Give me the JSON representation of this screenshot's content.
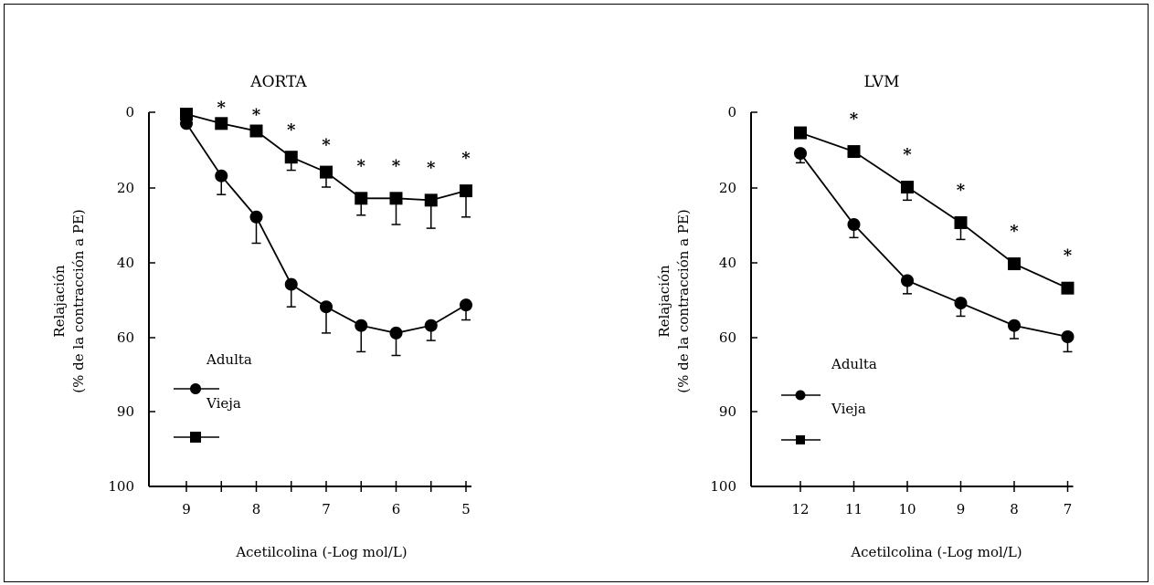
{
  "chart_data": [
    {
      "type": "line",
      "title": "AORTA",
      "xlabel": "Acetilcolina (-Log mol/L)",
      "ylabel_line1": "Relajación",
      "ylabel_line2": "(% de la contracción a PE)",
      "x_tick_labels": [
        "9",
        "8",
        "7",
        "6",
        "5"
      ],
      "x_tick_values": [
        9,
        8,
        7,
        6,
        5
      ],
      "x_range": [
        9,
        5
      ],
      "y_tick_labels": [
        "0",
        "20",
        "40",
        "60",
        "90",
        "100"
      ],
      "y_range": [
        0,
        100
      ],
      "y_inverted": true,
      "legend_labels": [
        "Adulta",
        "Vieja"
      ],
      "series": [
        {
          "name": "Adulta",
          "marker": "circle",
          "x": [
            9,
            8.5,
            8,
            7.5,
            7,
            6.5,
            6,
            5.5,
            5
          ],
          "values": [
            3,
            17,
            28,
            46,
            52,
            57,
            59,
            57,
            51.5
          ],
          "errors": [
            1,
            5,
            7,
            6,
            7,
            7,
            6,
            4,
            4
          ]
        },
        {
          "name": "Vieja",
          "marker": "square",
          "x": [
            9,
            8.5,
            8,
            7.5,
            7,
            6.5,
            6,
            5.5,
            5
          ],
          "values": [
            0.5,
            3,
            5,
            12,
            16,
            23,
            23,
            23.5,
            21
          ],
          "errors": [
            0,
            0,
            0,
            3.5,
            4,
            4.5,
            7,
            7.5,
            7
          ]
        }
      ],
      "significance_x": [
        8.5,
        8,
        7.5,
        7,
        6.5,
        6,
        5.5,
        5
      ],
      "significance_mark": "*"
    },
    {
      "type": "line",
      "title": "LVM",
      "xlabel": "Acetilcolina (-Log mol/L)",
      "ylabel_line1": "Relajación",
      "ylabel_line2": "(% de la contracción a PE)",
      "x_tick_labels": [
        "12",
        "11",
        "10",
        "9",
        "8",
        "7"
      ],
      "x_tick_values": [
        12,
        11,
        10,
        9,
        8,
        7
      ],
      "x_range": [
        12,
        7
      ],
      "y_tick_labels": [
        "0",
        "20",
        "40",
        "60",
        "90",
        "100"
      ],
      "y_range": [
        0,
        100
      ],
      "y_inverted": true,
      "legend_labels": [
        "Adulta",
        "Vieja"
      ],
      "series": [
        {
          "name": "Adulta",
          "marker": "circle",
          "x": [
            12,
            11,
            10,
            9,
            8,
            7
          ],
          "values": [
            11,
            30,
            45,
            51,
            57,
            60
          ],
          "errors": [
            2.5,
            3.5,
            3.5,
            3.5,
            3.5,
            4
          ]
        },
        {
          "name": "Vieja",
          "marker": "square",
          "x": [
            12,
            11,
            10,
            9,
            8,
            7
          ],
          "values": [
            5.5,
            10.5,
            20,
            29.5,
            40.5,
            47
          ],
          "errors": [
            0,
            0,
            3.5,
            4.5,
            0,
            0
          ]
        }
      ],
      "significance_x": [
        11,
        10,
        9,
        8,
        7
      ],
      "significance_mark": "*"
    }
  ]
}
